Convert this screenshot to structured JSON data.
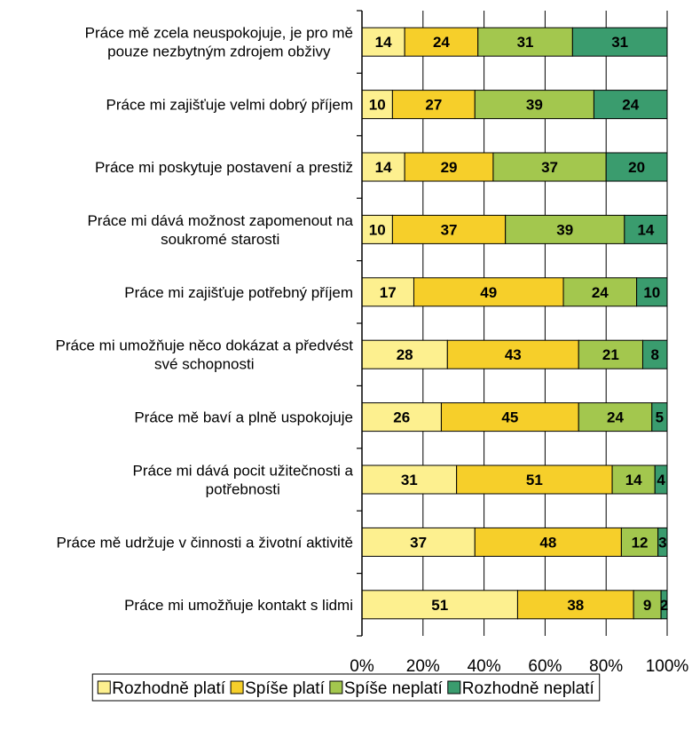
{
  "chart_data": {
    "type": "bar",
    "orientation": "horizontal",
    "stacked": true,
    "categories": [
      [
        "Práce mě zcela neuspokojuje, je pro mě",
        "pouze nezbytným zdrojem obživy"
      ],
      [
        "Práce mi zajišťuje velmi dobrý příjem"
      ],
      [
        "Práce mi poskytuje postavení a prestiž"
      ],
      [
        "Práce mi dává možnost zapomenout na",
        "soukromé starosti"
      ],
      [
        "Práce mi zajišťuje potřebný příjem"
      ],
      [
        "Práce mi umožňuje něco dokázat a předvést",
        "své schopnosti"
      ],
      [
        "Práce mě baví a plně uspokojuje"
      ],
      [
        "Práce mi dává pocit užitečnosti a",
        "potřebnosti"
      ],
      [
        "Práce mě udržuje v činnosti a životní aktivitě"
      ],
      [
        "Práce mi umožňuje kontakt s lidmi"
      ]
    ],
    "series": [
      {
        "name": "Rozhodně platí",
        "color": "#fdf08f",
        "values": [
          14,
          10,
          14,
          10,
          17,
          28,
          26,
          31,
          37,
          51
        ]
      },
      {
        "name": "Spíše platí",
        "color": "#f6cf2a",
        "values": [
          24,
          27,
          29,
          37,
          49,
          43,
          45,
          51,
          48,
          38
        ]
      },
      {
        "name": "Spíše neplatí",
        "color": "#a3c74e",
        "values": [
          31,
          39,
          37,
          39,
          24,
          21,
          24,
          14,
          12,
          9
        ]
      },
      {
        "name": "Rozhodně neplatí",
        "color": "#3a9c6e",
        "values": [
          31,
          24,
          20,
          14,
          10,
          8,
          5,
          4,
          3,
          2
        ]
      }
    ],
    "xaxis": {
      "ticks": [
        "0%",
        "20%",
        "40%",
        "60%",
        "80%",
        "100%"
      ],
      "range": [
        0,
        100
      ]
    },
    "grid": true,
    "legend_position": "bottom"
  }
}
